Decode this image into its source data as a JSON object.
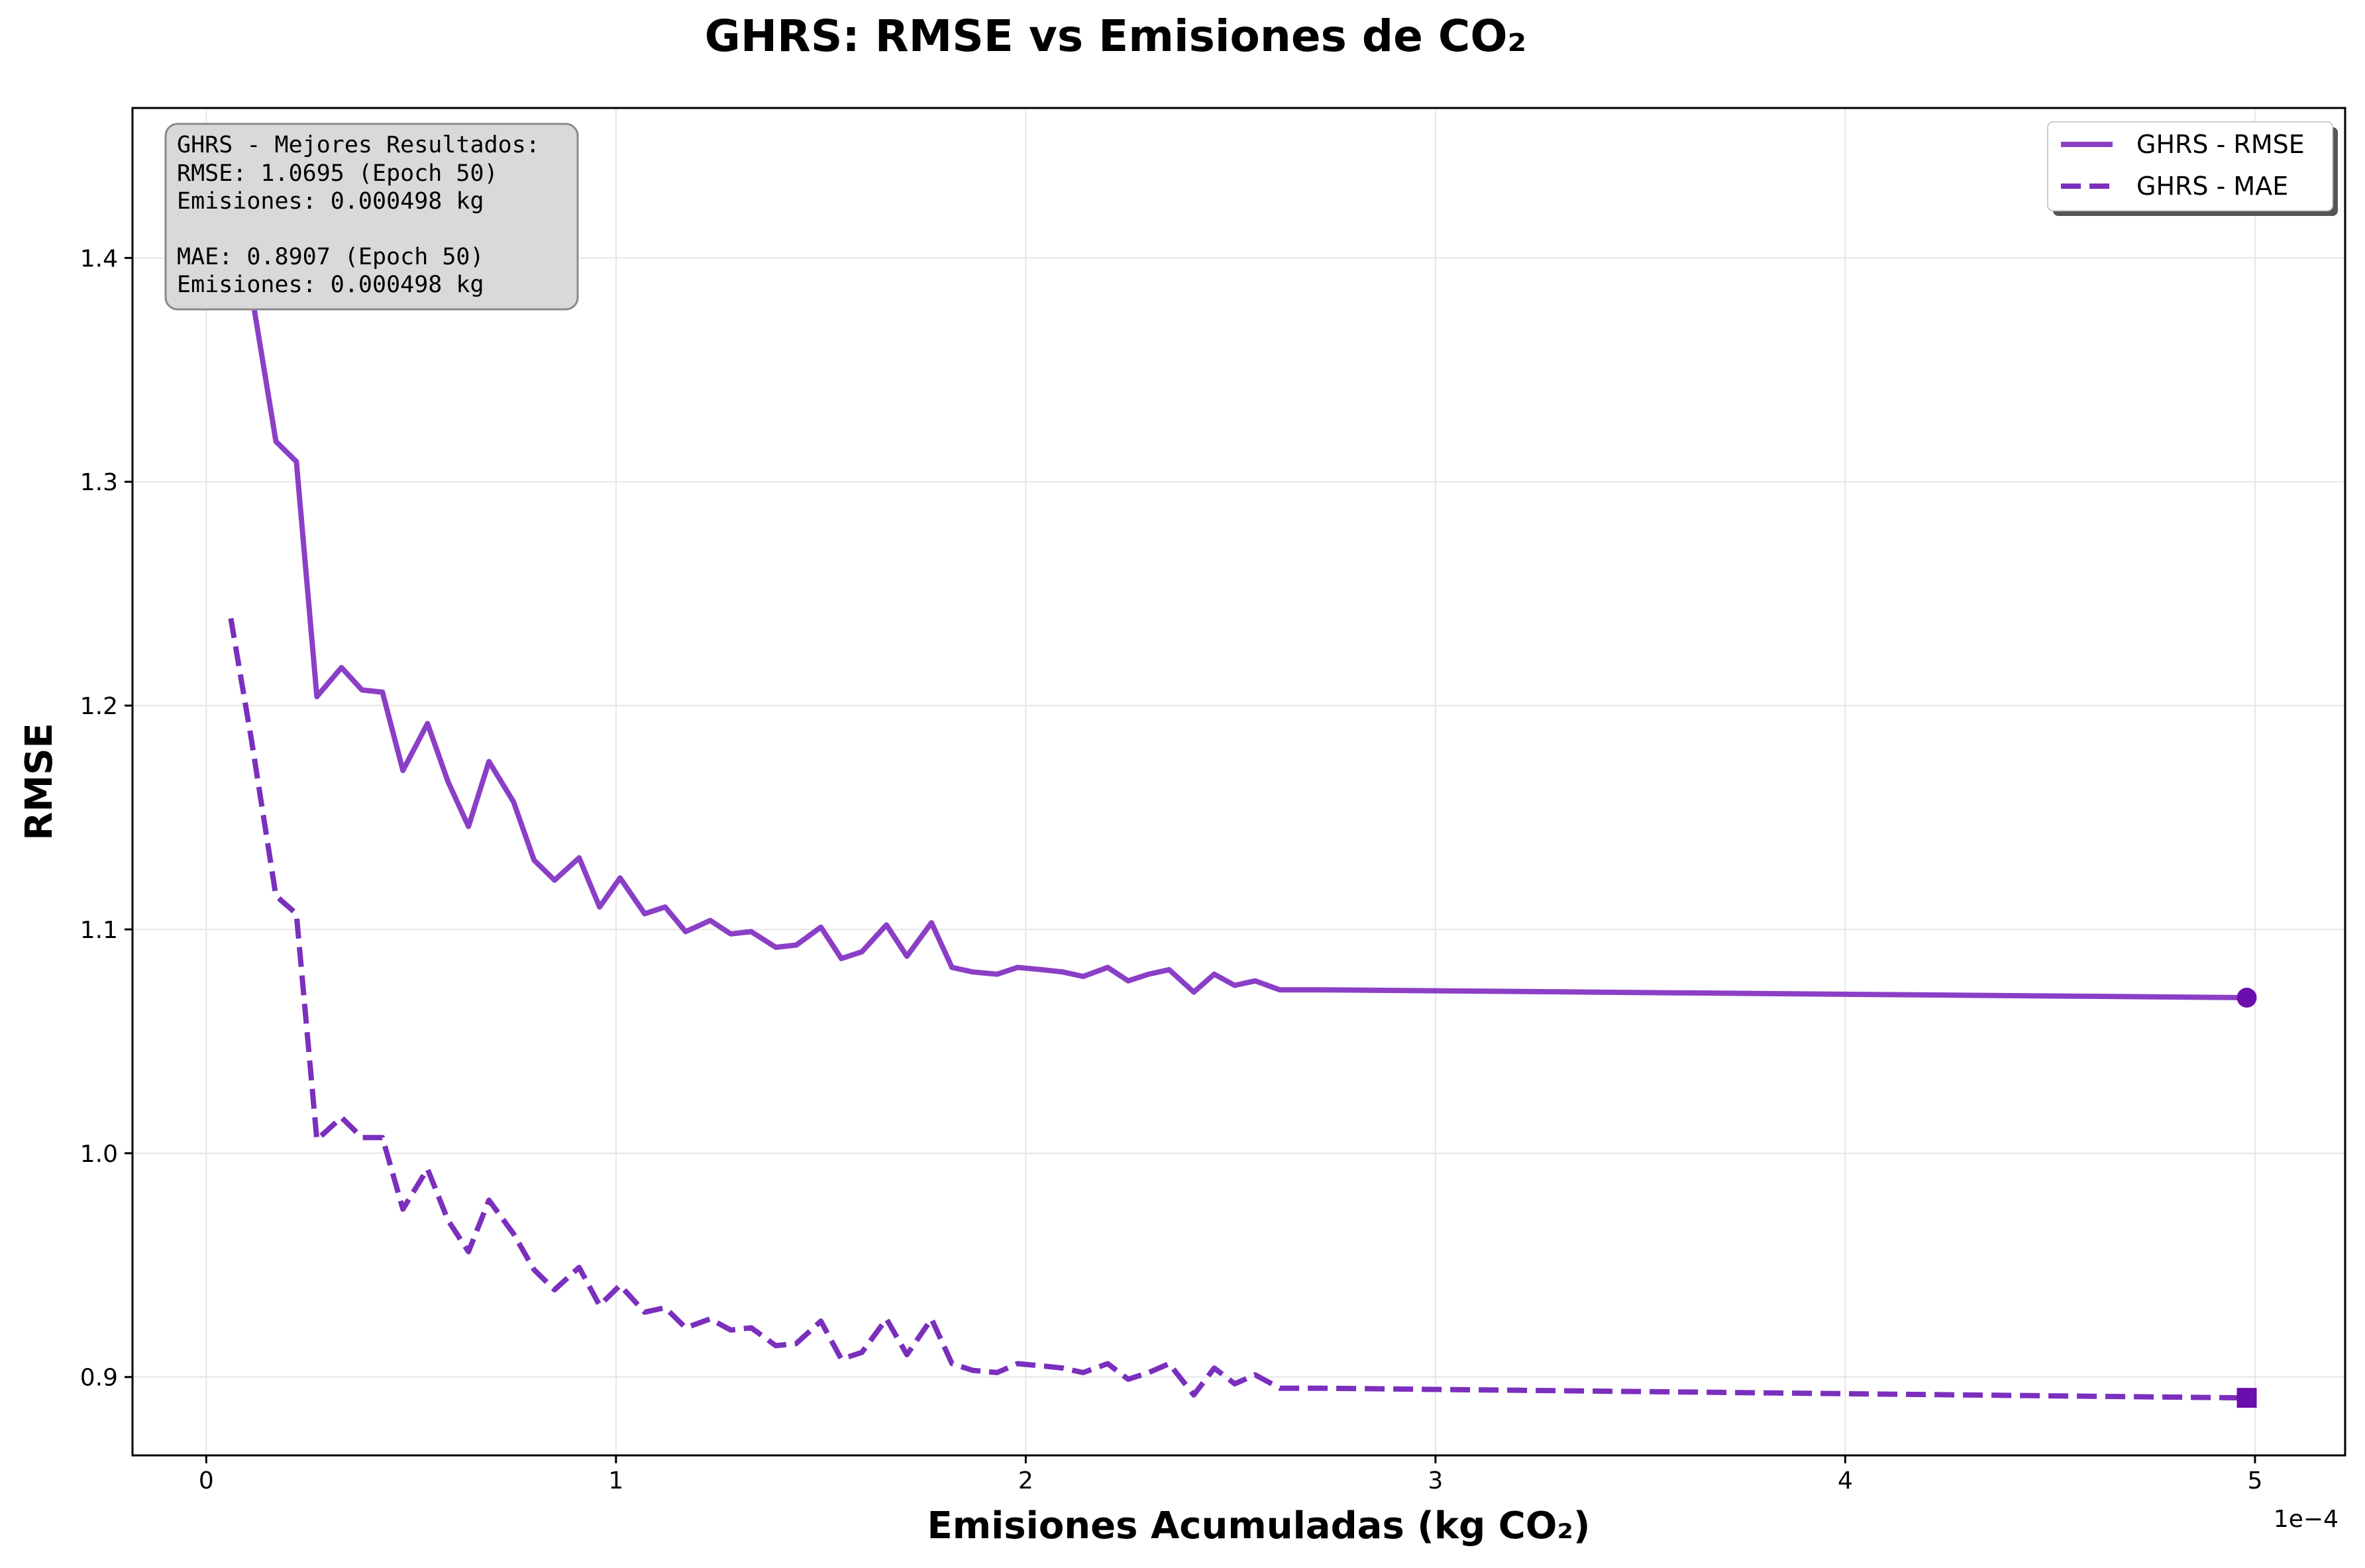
{
  "chart_data": {
    "type": "line",
    "title": "GHRS: RMSE vs Emisiones de CO₂",
    "xlabel": "Emisiones Acumuladas (kg CO₂)",
    "ylabel": "RMSE",
    "x_scale_label": "1e−4",
    "x_scale_factor": 0.0001,
    "xlim": [
      -0.18,
      5.22
    ],
    "ylim": [
      0.865,
      1.467
    ],
    "xticks": [
      0,
      1,
      2,
      3,
      4,
      5
    ],
    "xtick_labels": [
      "0",
      "1",
      "2",
      "3",
      "4",
      "5"
    ],
    "yticks": [
      0.9,
      1.0,
      1.1,
      1.2,
      1.3,
      1.4
    ],
    "ytick_labels": [
      "0.9",
      "1.0",
      "1.1",
      "1.2",
      "1.3",
      "1.4"
    ],
    "grid": true,
    "legend_position": "top-right",
    "series": [
      {
        "name": "GHRS - RMSE",
        "color": "#8b3fc6",
        "style": "solid",
        "marker_end": "circle",
        "marker_color": "#6a0dad",
        "x": [
          0.06,
          0.11,
          0.17,
          0.22,
          0.27,
          0.33,
          0.38,
          0.43,
          0.48,
          0.54,
          0.59,
          0.64,
          0.69,
          0.75,
          0.8,
          0.85,
          0.91,
          0.96,
          1.01,
          1.07,
          1.12,
          1.17,
          1.23,
          1.28,
          1.33,
          1.39,
          1.44,
          1.5,
          1.55,
          1.6,
          1.66,
          1.71,
          1.77,
          1.82,
          1.87,
          1.93,
          1.98,
          2.04,
          2.09,
          2.14,
          2.2,
          2.25,
          2.3,
          2.35,
          2.41,
          2.46,
          2.51,
          2.56,
          2.62,
          2.67,
          2.72,
          4.98
        ],
        "y": [
          1.445,
          1.385,
          1.318,
          1.309,
          1.204,
          1.217,
          1.207,
          1.206,
          1.171,
          1.192,
          1.166,
          1.146,
          1.175,
          1.157,
          1.131,
          1.122,
          1.132,
          1.11,
          1.123,
          1.107,
          1.11,
          1.099,
          1.104,
          1.098,
          1.099,
          1.092,
          1.093,
          1.101,
          1.087,
          1.09,
          1.102,
          1.088,
          1.103,
          1.083,
          1.081,
          1.08,
          1.083,
          1.082,
          1.081,
          1.079,
          1.083,
          1.077,
          1.08,
          1.082,
          1.072,
          1.08,
          1.075,
          1.077,
          1.073,
          1.073,
          1.073,
          1.0695
        ]
      },
      {
        "name": "GHRS - MAE",
        "color": "#7b2fbd",
        "style": "dashed",
        "marker_end": "square",
        "marker_color": "#6a0dad",
        "x": [
          0.06,
          0.11,
          0.17,
          0.22,
          0.27,
          0.33,
          0.38,
          0.43,
          0.48,
          0.54,
          0.59,
          0.64,
          0.69,
          0.75,
          0.8,
          0.85,
          0.91,
          0.96,
          1.01,
          1.07,
          1.12,
          1.17,
          1.23,
          1.28,
          1.33,
          1.39,
          1.44,
          1.5,
          1.55,
          1.6,
          1.66,
          1.71,
          1.77,
          1.82,
          1.87,
          1.93,
          1.98,
          2.04,
          2.09,
          2.14,
          2.2,
          2.25,
          2.3,
          2.35,
          2.41,
          2.46,
          2.51,
          2.56,
          2.62,
          2.67,
          2.72,
          4.98
        ],
        "y": [
          1.239,
          1.185,
          1.115,
          1.107,
          1.006,
          1.016,
          1.007,
          1.007,
          0.975,
          0.993,
          0.97,
          0.956,
          0.979,
          0.964,
          0.948,
          0.939,
          0.949,
          0.932,
          0.941,
          0.929,
          0.931,
          0.922,
          0.926,
          0.921,
          0.922,
          0.914,
          0.915,
          0.925,
          0.908,
          0.911,
          0.926,
          0.91,
          0.926,
          0.906,
          0.903,
          0.902,
          0.906,
          0.905,
          0.904,
          0.902,
          0.906,
          0.899,
          0.902,
          0.906,
          0.892,
          0.904,
          0.897,
          0.901,
          0.895,
          0.895,
          0.895,
          0.8907
        ]
      }
    ],
    "annotation_box": {
      "lines": [
        "GHRS - Mejores Resultados:",
        "RMSE: 1.0695 (Epoch 50)",
        "Emisiones: 0.000498 kg",
        "",
        "MAE: 0.8907 (Epoch 50)",
        "Emisiones: 0.000498 kg"
      ]
    }
  }
}
